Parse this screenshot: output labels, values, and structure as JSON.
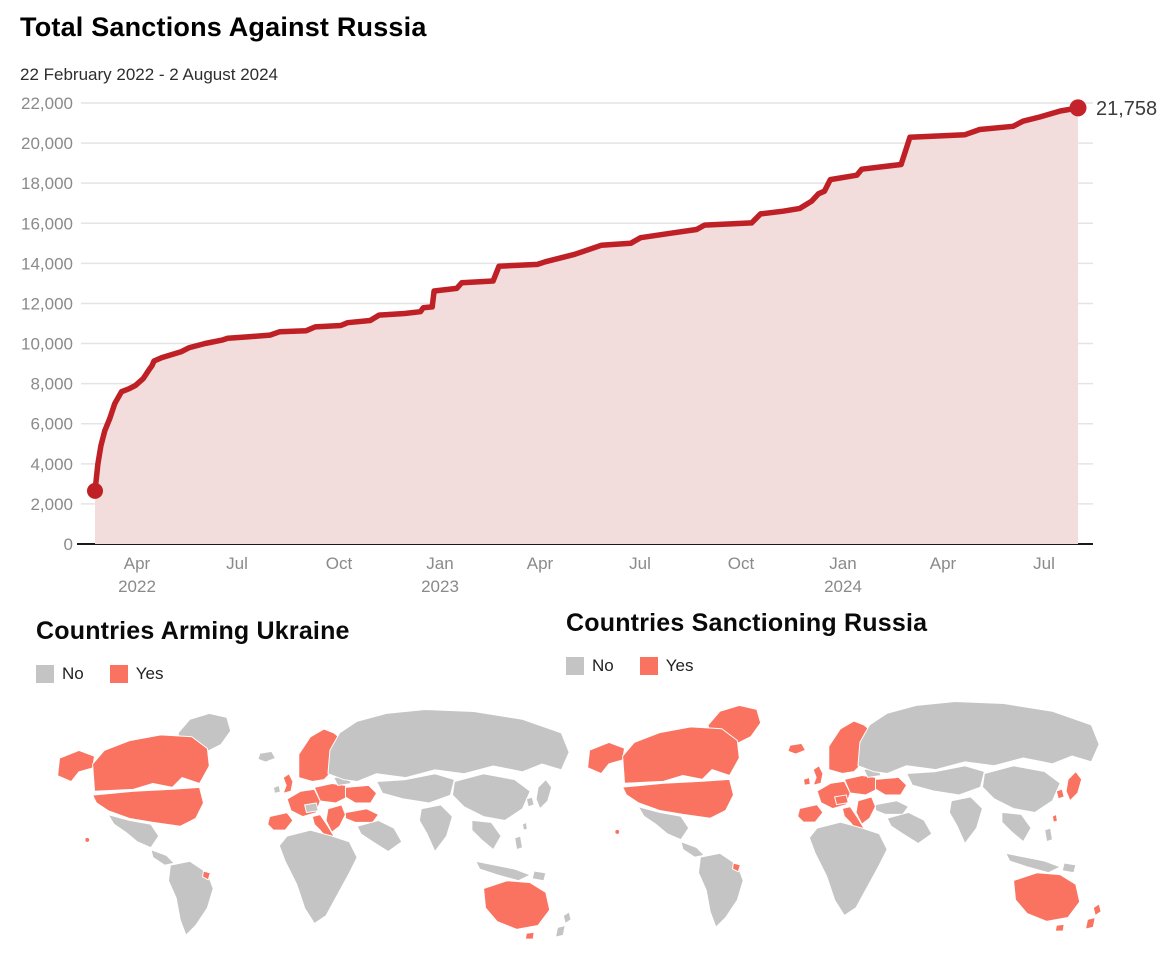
{
  "colors": {
    "line": "#bf2026",
    "end_dot": "#c4232b",
    "area_fill": "#f3dcdc",
    "grid": "#e4e4e4",
    "zero_axis": "#1a1a1a",
    "tick_text": "#8a8a8a",
    "annotation_text": "#3c3c3c",
    "map_yes": "#fa7360",
    "map_no": "#c4c4c4",
    "map_border": "#ffffff"
  },
  "chart_data": [
    {
      "type": "area",
      "title": "Total Sanctions Against Russia",
      "subtitle": "22 February 2022 - 2 August 2024",
      "x_range": [
        "22 February 2022",
        "2 August 2024"
      ],
      "ylim": [
        0,
        22000
      ],
      "y_tick_step": 2000,
      "grid": "horizontal",
      "legend_position": "none",
      "start_value": 2650,
      "end_value": 21758,
      "end_label": "21,758",
      "y_tick_labels": [
        "0",
        "2,000",
        "4,000",
        "6,000",
        "8,000",
        "10,000",
        "12,000",
        "14,000",
        "16,000",
        "18,000",
        "20,000",
        "22,000"
      ],
      "x_ticks": [
        {
          "label": "Apr",
          "year": "2022",
          "f": 0.0516
        },
        {
          "label": "Jul",
          "year": "",
          "f": 0.1508
        },
        {
          "label": "Oct",
          "year": "",
          "f": 0.252
        },
        {
          "label": "Jan",
          "year": "2023",
          "f": 0.3522
        },
        {
          "label": "Apr",
          "year": "",
          "f": 0.4514
        },
        {
          "label": "Jul",
          "year": "",
          "f": 0.5506
        },
        {
          "label": "Oct",
          "year": "",
          "f": 0.6508
        },
        {
          "label": "Jan",
          "year": "2024",
          "f": 0.752
        },
        {
          "label": "Apr",
          "year": "",
          "f": 0.8512
        },
        {
          "label": "Jul",
          "year": "",
          "f": 0.9514
        }
      ],
      "points_note": "pairs of [t, value]; t = fraction of time span 22 Feb 2022 .. 2 Aug 2024",
      "points": [
        [
          0.0,
          2650
        ],
        [
          0.003,
          4000
        ],
        [
          0.006,
          4900
        ],
        [
          0.01,
          5650
        ],
        [
          0.015,
          6250
        ],
        [
          0.02,
          7000
        ],
        [
          0.027,
          7600
        ],
        [
          0.035,
          7750
        ],
        [
          0.041,
          7900
        ],
        [
          0.049,
          8250
        ],
        [
          0.055,
          8700
        ],
        [
          0.058,
          8900
        ],
        [
          0.06,
          9130
        ],
        [
          0.068,
          9300
        ],
        [
          0.088,
          9600
        ],
        [
          0.096,
          9800
        ],
        [
          0.112,
          10000
        ],
        [
          0.13,
          10180
        ],
        [
          0.135,
          10260
        ],
        [
          0.155,
          10330
        ],
        [
          0.178,
          10420
        ],
        [
          0.188,
          10590
        ],
        [
          0.215,
          10640
        ],
        [
          0.224,
          10830
        ],
        [
          0.25,
          10900
        ],
        [
          0.257,
          11040
        ],
        [
          0.28,
          11150
        ],
        [
          0.289,
          11420
        ],
        [
          0.315,
          11500
        ],
        [
          0.331,
          11590
        ],
        [
          0.334,
          11790
        ],
        [
          0.343,
          11830
        ],
        [
          0.345,
          12620
        ],
        [
          0.368,
          12750
        ],
        [
          0.373,
          13030
        ],
        [
          0.405,
          13120
        ],
        [
          0.411,
          13860
        ],
        [
          0.45,
          13950
        ],
        [
          0.458,
          14080
        ],
        [
          0.488,
          14450
        ],
        [
          0.515,
          14900
        ],
        [
          0.545,
          15000
        ],
        [
          0.555,
          15280
        ],
        [
          0.585,
          15500
        ],
        [
          0.612,
          15690
        ],
        [
          0.62,
          15910
        ],
        [
          0.668,
          16020
        ],
        [
          0.677,
          16470
        ],
        [
          0.7,
          16600
        ],
        [
          0.717,
          16740
        ],
        [
          0.729,
          17100
        ],
        [
          0.736,
          17470
        ],
        [
          0.742,
          17600
        ],
        [
          0.748,
          18180
        ],
        [
          0.775,
          18400
        ],
        [
          0.78,
          18700
        ],
        [
          0.82,
          18930
        ],
        [
          0.826,
          19840
        ],
        [
          0.829,
          20290
        ],
        [
          0.885,
          20420
        ],
        [
          0.9,
          20680
        ],
        [
          0.934,
          20840
        ],
        [
          0.944,
          21090
        ],
        [
          0.961,
          21300
        ],
        [
          0.982,
          21600
        ],
        [
          1.0,
          21758
        ]
      ]
    },
    {
      "type": "choropleth_map",
      "title": "Countries Arming Ukraine",
      "legend": {
        "no": "No",
        "yes": "Yes"
      },
      "yes_regions": [
        "alaska",
        "canada",
        "usa",
        "hawaii",
        "french-guiana",
        "uk",
        "scandinavia",
        "western-europe",
        "iberia",
        "italy",
        "balkans-greece",
        "eastern-europe",
        "ukraine",
        "turkey",
        "australia",
        "tasmania"
      ]
    },
    {
      "type": "choropleth_map",
      "title": "Countries Sanctioning Russia",
      "legend": {
        "no": "No",
        "yes": "Yes"
      },
      "yes_regions": [
        "alaska",
        "canada",
        "usa",
        "hawaii",
        "greenland",
        "iceland",
        "ireland",
        "french-guiana",
        "uk",
        "scandinavia",
        "western-europe",
        "iberia",
        "italy",
        "alpine",
        "balkans-greece",
        "eastern-europe",
        "ukraine",
        "japan",
        "south-korea",
        "taiwan",
        "australia",
        "tasmania",
        "new-zealand-north",
        "new-zealand-south"
      ]
    }
  ]
}
